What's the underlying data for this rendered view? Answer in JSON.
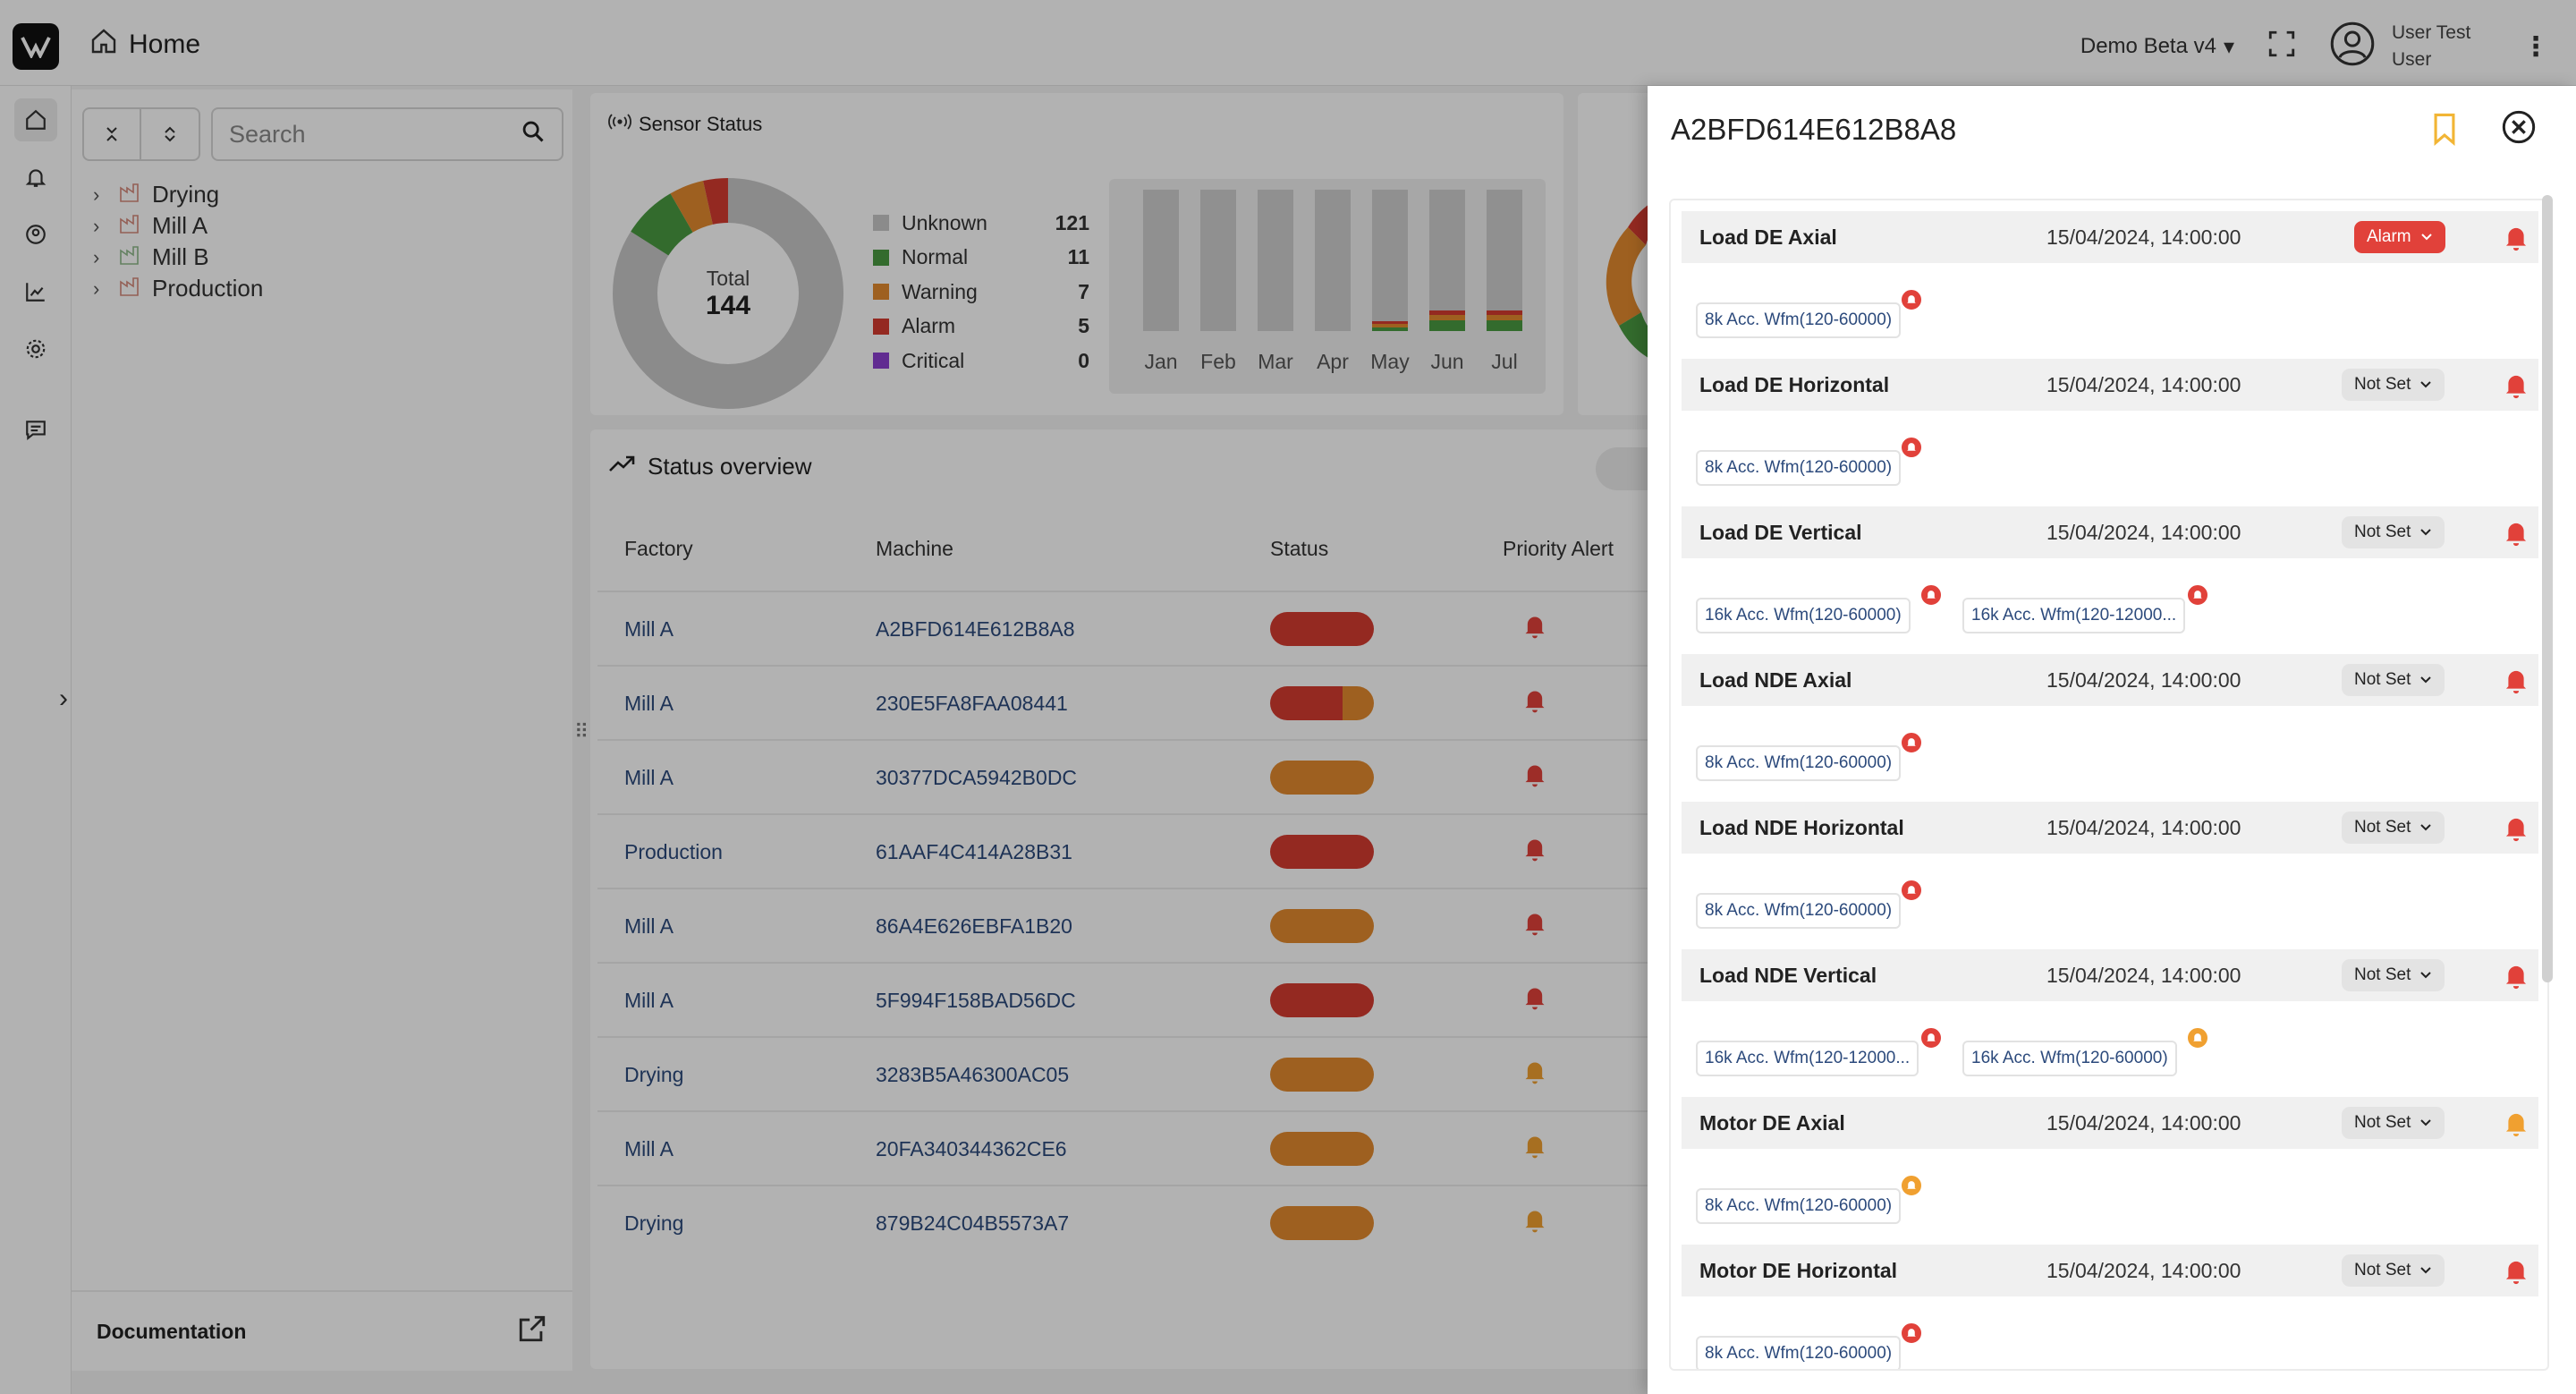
{
  "header": {
    "title": "Home",
    "project": "Demo Beta v4",
    "user_name": "User Test User"
  },
  "tree": {
    "search_placeholder": "Search",
    "nodes": [
      "Drying",
      "Mill A",
      "Mill B",
      "Production"
    ],
    "documentation_label": "Documentation"
  },
  "sensor_status": {
    "title": "Sensor Status",
    "total_label": "Total",
    "total": "144",
    "legend": [
      {
        "label": "Unknown",
        "count": "121",
        "color": "#c8c8c8"
      },
      {
        "label": "Normal",
        "count": "11",
        "color": "#4a9a41"
      },
      {
        "label": "Warning",
        "count": "7",
        "color": "#e38a2e"
      },
      {
        "label": "Alarm",
        "count": "5",
        "color": "#d43c30"
      },
      {
        "label": "Critical",
        "count": "0",
        "color": "#8b3fd0"
      }
    ],
    "months": [
      "Jan",
      "Feb",
      "Mar",
      "Apr",
      "May",
      "Jun",
      "Jul"
    ]
  },
  "status_overview": {
    "title": "Status overview",
    "columns": [
      "Factory",
      "Machine",
      "Status",
      "Priority Alert"
    ],
    "rows": [
      {
        "factory": "Mill A",
        "machine": "A2BFD614E612B8A8"
      },
      {
        "factory": "Mill A",
        "machine": "230E5FA8FAA08441"
      },
      {
        "factory": "Mill A",
        "machine": "30377DCA5942B0DC"
      },
      {
        "factory": "Production",
        "machine": "61AAF4C414A28B31"
      },
      {
        "factory": "Mill A",
        "machine": "86A4E626EBFA1B20"
      },
      {
        "factory": "Mill A",
        "machine": "5F994F158BAD56DC"
      },
      {
        "factory": "Drying",
        "machine": "3283B5A46300AC05"
      },
      {
        "factory": "Mill A",
        "machine": "20FA340344362CE6"
      },
      {
        "factory": "Drying",
        "machine": "879B24C04B5573A7"
      }
    ]
  },
  "drawer": {
    "title": "A2BFD614E612B8A8",
    "groups": [
      {
        "name": "Load DE Axial",
        "time": "15/04/2024, 14:00:00",
        "severity": "Alarm",
        "bell": "red",
        "chips": [
          {
            "label": "8k Acc. Wfm(120-60000)",
            "badge": "red"
          }
        ]
      },
      {
        "name": "Load DE Horizontal",
        "time": "15/04/2024, 14:00:00",
        "severity": "Not Set",
        "bell": "red",
        "chips": [
          {
            "label": "8k Acc. Wfm(120-60000)",
            "badge": "red"
          }
        ]
      },
      {
        "name": "Load DE Vertical",
        "time": "15/04/2024, 14:00:00",
        "severity": "Not Set",
        "bell": "red",
        "chips": [
          {
            "label": "16k Acc. Wfm(120-60000)",
            "badge": "red"
          },
          {
            "label": "16k Acc. Wfm(120-12000...",
            "badge": "red"
          }
        ]
      },
      {
        "name": "Load NDE Axial",
        "time": "15/04/2024, 14:00:00",
        "severity": "Not Set",
        "bell": "red",
        "chips": [
          {
            "label": "8k Acc. Wfm(120-60000)",
            "badge": "red"
          }
        ]
      },
      {
        "name": "Load NDE Horizontal",
        "time": "15/04/2024, 14:00:00",
        "severity": "Not Set",
        "bell": "red",
        "chips": [
          {
            "label": "8k Acc. Wfm(120-60000)",
            "badge": "red"
          }
        ]
      },
      {
        "name": "Load NDE Vertical",
        "time": "15/04/2024, 14:00:00",
        "severity": "Not Set",
        "bell": "red",
        "chips": [
          {
            "label": "16k Acc. Wfm(120-12000...",
            "badge": "red"
          },
          {
            "label": "16k Acc. Wfm(120-60000)",
            "badge": "orange"
          }
        ]
      },
      {
        "name": "Motor DE Axial",
        "time": "15/04/2024, 14:00:00",
        "severity": "Not Set",
        "bell": "orange",
        "chips": [
          {
            "label": "8k Acc. Wfm(120-60000)",
            "badge": "orange"
          }
        ]
      },
      {
        "name": "Motor DE Horizontal",
        "time": "15/04/2024, 14:00:00",
        "severity": "Not Set",
        "bell": "red",
        "chips": [
          {
            "label": "8k Acc. Wfm(120-60000)",
            "badge": "red"
          }
        ]
      }
    ]
  },
  "colors": {
    "red": "#e1413a",
    "orange": "#f0a030",
    "link": "#2c4a7c"
  }
}
